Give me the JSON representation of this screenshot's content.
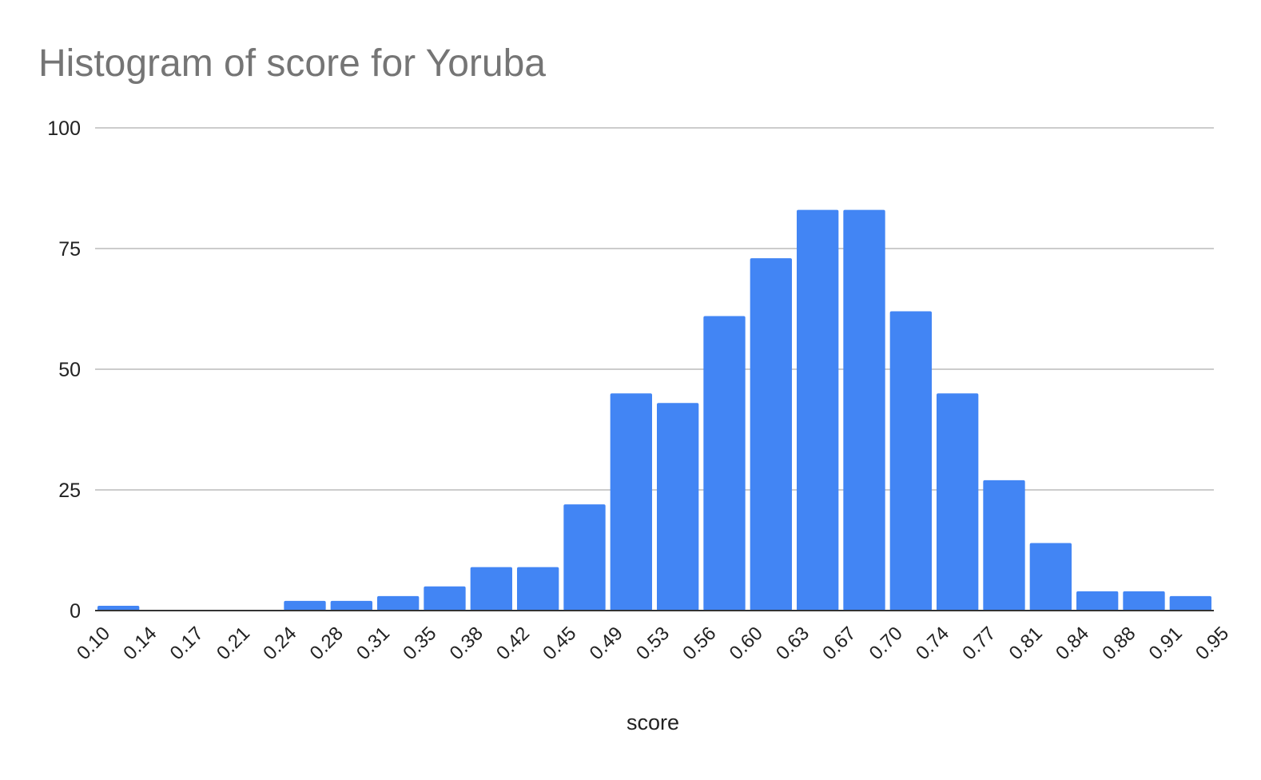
{
  "chart_data": {
    "type": "bar",
    "title": "Histogram of score for Yoruba",
    "xlabel": "score",
    "ylabel": "",
    "ylim": [
      0,
      100
    ],
    "yticks": [
      0,
      25,
      50,
      75,
      100
    ],
    "xticks": [
      "0.10",
      "0.14",
      "0.17",
      "0.21",
      "0.24",
      "0.28",
      "0.31",
      "0.35",
      "0.38",
      "0.42",
      "0.45",
      "0.49",
      "0.53",
      "0.56",
      "0.60",
      "0.63",
      "0.67",
      "0.70",
      "0.74",
      "0.77",
      "0.81",
      "0.84",
      "0.88",
      "0.91",
      "0.95"
    ],
    "values": [
      1,
      0,
      0,
      0,
      2,
      2,
      3,
      5,
      9,
      9,
      22,
      45,
      43,
      61,
      73,
      83,
      83,
      62,
      45,
      27,
      14,
      4,
      4,
      3
    ],
    "grid": true,
    "legend": "none",
    "colors": {
      "bar": "#4285f4",
      "grid": "#cccccc",
      "axis": "#333333"
    }
  }
}
